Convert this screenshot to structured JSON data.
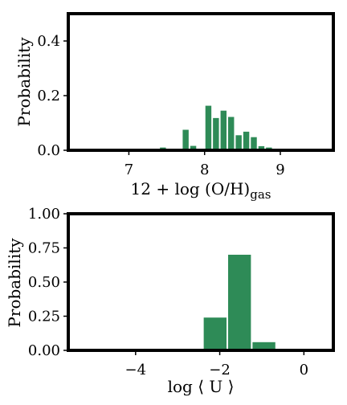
{
  "chart_data": [
    {
      "type": "bar",
      "xlabel": "12 + log (O/H)",
      "xlabel_sub": "gas",
      "ylabel": "Probability",
      "xlim": [
        6.2,
        9.7
      ],
      "ylim": [
        0,
        0.5
      ],
      "xticks": [
        7,
        8,
        9
      ],
      "xtick_labels": [
        "7",
        "8",
        "9"
      ],
      "yticks": [
        0,
        0.2,
        0.4
      ],
      "ytick_labels": [
        "0.0",
        "0.2",
        "0.4"
      ],
      "bin_width": 0.1,
      "bars": [
        {
          "x": 7.45,
          "value": 0.01
        },
        {
          "x": 7.75,
          "value": 0.075
        },
        {
          "x": 7.85,
          "value": 0.016
        },
        {
          "x": 8.05,
          "value": 0.163
        },
        {
          "x": 8.15,
          "value": 0.118
        },
        {
          "x": 8.25,
          "value": 0.145
        },
        {
          "x": 8.35,
          "value": 0.122
        },
        {
          "x": 8.45,
          "value": 0.055
        },
        {
          "x": 8.55,
          "value": 0.068
        },
        {
          "x": 8.65,
          "value": 0.048
        },
        {
          "x": 8.75,
          "value": 0.015
        },
        {
          "x": 8.85,
          "value": 0.01
        }
      ],
      "bar_color": "#2e8b57",
      "grid": false
    },
    {
      "type": "bar",
      "xlabel": "log ⟨ U ⟩",
      "ylabel": "Probability",
      "xlim": [
        -5.6,
        0.7
      ],
      "ylim": [
        0,
        1.0
      ],
      "xticks": [
        -4,
        -2,
        0
      ],
      "xtick_labels": [
        "−4",
        "−2",
        "0"
      ],
      "yticks": [
        0,
        0.25,
        0.5,
        0.75,
        1.0
      ],
      "ytick_labels": [
        "0.00",
        "0.25",
        "0.50",
        "0.75",
        "1.00"
      ],
      "bin_width": 0.58,
      "bars": [
        {
          "x": -2.11,
          "value": 0.24
        },
        {
          "x": -1.53,
          "value": 0.7
        },
        {
          "x": -0.95,
          "value": 0.06
        }
      ],
      "bar_color": "#2e8b57",
      "grid": false
    }
  ]
}
